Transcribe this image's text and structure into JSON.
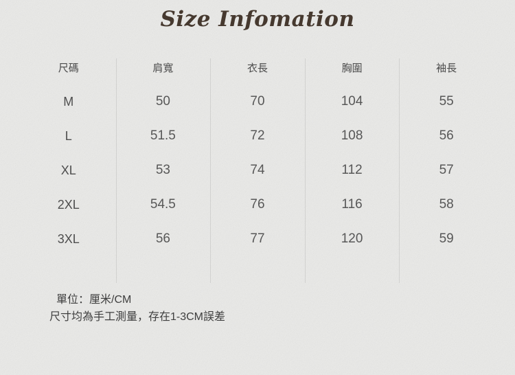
{
  "page": {
    "background_color": "#eaeae8",
    "title_color": "#46392f",
    "divider_color": "#c9c9c7",
    "text_color": "#575757"
  },
  "chart_data": {
    "type": "table",
    "title": "Size Infomation",
    "columns": [
      "尺碼",
      "肩寬",
      "衣長",
      "胸圍",
      "袖長"
    ],
    "rows": [
      [
        "M",
        "50",
        "70",
        "104",
        "55"
      ],
      [
        "L",
        "51.5",
        "72",
        "108",
        "56"
      ],
      [
        "XL",
        "53",
        "74",
        "112",
        "57"
      ],
      [
        "2XL",
        "54.5",
        "76",
        "116",
        "58"
      ],
      [
        "3XL",
        "56",
        "77",
        "120",
        "59"
      ]
    ],
    "notes": [
      "單位：厘米/CM",
      "尺寸均為手工測量，存在1-3CM誤差"
    ],
    "layout": {
      "grid": "vertical-dividers-only",
      "header_position": "top"
    }
  }
}
